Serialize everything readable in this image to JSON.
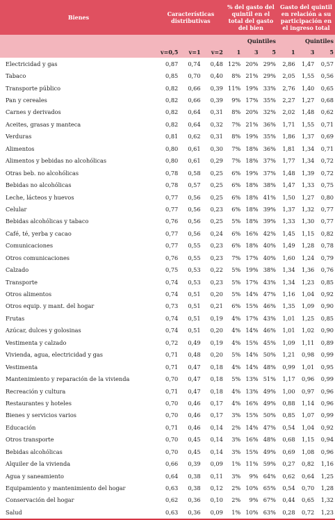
{
  "header": {
    "col_bienes": "Bienes",
    "col_caracteristicas": "Características distributivas",
    "col_gasto_pct": "% del gasto del quintil en el total del gasto del bien",
    "col_gasto_rel": "Gasto del quintil en relación a su participación en el ingreso total",
    "quintiles_label": "Quintiles",
    "v_labels": [
      "v=0,5",
      "v=1",
      "v=2"
    ],
    "q_labels": [
      "1",
      "3",
      "5"
    ]
  },
  "rows": [
    {
      "name": "Electricidad y gas",
      "v": [
        "0,87",
        "0,74",
        "0,48"
      ],
      "p": [
        "12%",
        "20%",
        "29%"
      ],
      "e": [
        "2,86",
        "1,47",
        "0,57"
      ]
    },
    {
      "name": "Tabaco",
      "v": [
        "0,85",
        "0,70",
        "0,40"
      ],
      "p": [
        "8%",
        "21%",
        "29%"
      ],
      "e": [
        "2,05",
        "1,55",
        "0,56"
      ]
    },
    {
      "name": "Transporte público",
      "v": [
        "0,82",
        "0,66",
        "0,39"
      ],
      "p": [
        "11%",
        "19%",
        "33%"
      ],
      "e": [
        "2,76",
        "1,40",
        "0,65"
      ]
    },
    {
      "name": "Pan y cereales",
      "v": [
        "0,82",
        "0,66",
        "0,39"
      ],
      "p": [
        "9%",
        "17%",
        "35%"
      ],
      "e": [
        "2,27",
        "1,27",
        "0,68"
      ]
    },
    {
      "name": "Carnes y derivados",
      "v": [
        "0,82",
        "0,64",
        "0,31"
      ],
      "p": [
        "8%",
        "20%",
        "32%"
      ],
      "e": [
        "2,02",
        "1,48",
        "0,62"
      ]
    },
    {
      "name": "Aceites, grasas y manteca",
      "v": [
        "0,82",
        "0,64",
        "0,32"
      ],
      "p": [
        "7%",
        "21%",
        "36%"
      ],
      "e": [
        "1,71",
        "1,55",
        "0,71"
      ]
    },
    {
      "name": "Verduras",
      "v": [
        "0,81",
        "0,62",
        "0,31"
      ],
      "p": [
        "8%",
        "19%",
        "35%"
      ],
      "e": [
        "1,86",
        "1,37",
        "0,69"
      ]
    },
    {
      "name": "Alimentos",
      "v": [
        "0,80",
        "0,61",
        "0,30"
      ],
      "p": [
        "7%",
        "18%",
        "36%"
      ],
      "e": [
        "1,81",
        "1,34",
        "0,71"
      ]
    },
    {
      "name": "Alimentos y bebidas no alcohólicas",
      "v": [
        "0,80",
        "0,61",
        "0,29"
      ],
      "p": [
        "7%",
        "18%",
        "37%"
      ],
      "e": [
        "1,77",
        "1,34",
        "0,72"
      ]
    },
    {
      "name": "Otras beb. no alcohólicas",
      "v": [
        "0,78",
        "0,58",
        "0,25"
      ],
      "p": [
        "6%",
        "19%",
        "37%"
      ],
      "e": [
        "1,48",
        "1,39",
        "0,72"
      ]
    },
    {
      "name": "Bebidas no alcohólicas",
      "v": [
        "0,78",
        "0,57",
        "0,25"
      ],
      "p": [
        "6%",
        "18%",
        "38%"
      ],
      "e": [
        "1,47",
        "1,33",
        "0,75"
      ]
    },
    {
      "name": "Leche, lácteos y huevos",
      "v": [
        "0,77",
        "0,56",
        "0,25"
      ],
      "p": [
        "6%",
        "18%",
        "41%"
      ],
      "e": [
        "1,50",
        "1,27",
        "0,80"
      ]
    },
    {
      "name": "Celular",
      "v": [
        "0,77",
        "0,56",
        "0,23"
      ],
      "p": [
        "6%",
        "18%",
        "39%"
      ],
      "e": [
        "1,37",
        "1,32",
        "0,77"
      ]
    },
    {
      "name": "Bebidas alcohólicas y tabaco",
      "v": [
        "0,76",
        "0,56",
        "0,25"
      ],
      "p": [
        "5%",
        "18%",
        "39%"
      ],
      "e": [
        "1,33",
        "1,30",
        "0,77"
      ]
    },
    {
      "name": "Café, té, yerba y cacao",
      "v": [
        "0,77",
        "0,56",
        "0,24"
      ],
      "p": [
        "6%",
        "16%",
        "42%"
      ],
      "e": [
        "1,45",
        "1,15",
        "0,82"
      ]
    },
    {
      "name": "Comunicaciones",
      "v": [
        "0,77",
        "0,55",
        "0,23"
      ],
      "p": [
        "6%",
        "18%",
        "40%"
      ],
      "e": [
        "1,49",
        "1,28",
        "0,78"
      ]
    },
    {
      "name": "Otros comunicaciones",
      "v": [
        "0,76",
        "0,55",
        "0,23"
      ],
      "p": [
        "7%",
        "17%",
        "40%"
      ],
      "e": [
        "1,60",
        "1,24",
        "0,79"
      ]
    },
    {
      "name": "Calzado",
      "v": [
        "0,75",
        "0,53",
        "0,22"
      ],
      "p": [
        "5%",
        "19%",
        "38%"
      ],
      "e": [
        "1,34",
        "1,36",
        "0,76"
      ]
    },
    {
      "name": "Transporte",
      "v": [
        "0,74",
        "0,53",
        "0,23"
      ],
      "p": [
        "5%",
        "17%",
        "43%"
      ],
      "e": [
        "1,34",
        "1,23",
        "0,85"
      ]
    },
    {
      "name": "Otros alimentos",
      "v": [
        "0,74",
        "0,51",
        "0,20"
      ],
      "p": [
        "5%",
        "14%",
        "47%"
      ],
      "e": [
        "1,16",
        "1,04",
        "0,92"
      ]
    },
    {
      "name": "Otros equip. y mant. del hogar",
      "v": [
        "0,73",
        "0,51",
        "0,21"
      ],
      "p": [
        "6%",
        "15%",
        "46%"
      ],
      "e": [
        "1,35",
        "1,09",
        "0,90"
      ]
    },
    {
      "name": "Frutas",
      "v": [
        "0,74",
        "0,51",
        "0,19"
      ],
      "p": [
        "4%",
        "17%",
        "43%"
      ],
      "e": [
        "1,01",
        "1,25",
        "0,85"
      ]
    },
    {
      "name": "Azúcar, dulces y golosinas",
      "v": [
        "0,74",
        "0,51",
        "0,20"
      ],
      "p": [
        "4%",
        "14%",
        "46%"
      ],
      "e": [
        "1,01",
        "1,02",
        "0,90"
      ]
    },
    {
      "name": "Vestimenta y calzado",
      "v": [
        "0,72",
        "0,49",
        "0,19"
      ],
      "p": [
        "4%",
        "15%",
        "45%"
      ],
      "e": [
        "1,09",
        "1,11",
        "0,89"
      ]
    },
    {
      "name": "Vivienda, agua, electricidad y gas",
      "v": [
        "0,71",
        "0,48",
        "0,20"
      ],
      "p": [
        "5%",
        "14%",
        "50%"
      ],
      "e": [
        "1,21",
        "0,98",
        "0,99"
      ]
    },
    {
      "name": "Vestimenta",
      "v": [
        "0,71",
        "0,47",
        "0,18"
      ],
      "p": [
        "4%",
        "14%",
        "48%"
      ],
      "e": [
        "0,99",
        "1,01",
        "0,95"
      ]
    },
    {
      "name": "Mantenimiento y reparación de la vivienda",
      "v": [
        "0,70",
        "0,47",
        "0,18"
      ],
      "p": [
        "5%",
        "13%",
        "51%"
      ],
      "e": [
        "1,17",
        "0,96",
        "0,99"
      ]
    },
    {
      "name": "Recreación y cultura",
      "v": [
        "0,71",
        "0,47",
        "0,18"
      ],
      "p": [
        "4%",
        "13%",
        "49%"
      ],
      "e": [
        "1,00",
        "0,97",
        "0,96"
      ]
    },
    {
      "name": "Restaurantes y hoteles",
      "v": [
        "0,70",
        "0,46",
        "0,17"
      ],
      "p": [
        "4%",
        "16%",
        "49%"
      ],
      "e": [
        "0,88",
        "1,14",
        "0,96"
      ]
    },
    {
      "name": "Bienes y servicios varios",
      "v": [
        "0,70",
        "0,46",
        "0,17"
      ],
      "p": [
        "3%",
        "15%",
        "50%"
      ],
      "e": [
        "0,85",
        "1,07",
        "0,99"
      ]
    },
    {
      "name": "Educación",
      "v": [
        "0,71",
        "0,46",
        "0,14"
      ],
      "p": [
        "2%",
        "14%",
        "47%"
      ],
      "e": [
        "0,54",
        "1,04",
        "0,92"
      ]
    },
    {
      "name": "Otros transporte",
      "v": [
        "0,70",
        "0,45",
        "0,14"
      ],
      "p": [
        "3%",
        "16%",
        "48%"
      ],
      "e": [
        "0,68",
        "1,15",
        "0,94"
      ]
    },
    {
      "name": "Bebidas alcohólicas",
      "v": [
        "0,70",
        "0,45",
        "0,14"
      ],
      "p": [
        "3%",
        "15%",
        "49%"
      ],
      "e": [
        "0,69",
        "1,08",
        "0,96"
      ]
    },
    {
      "name": "Alquiler de la vivienda",
      "v": [
        "0,66",
        "0,39",
        "0,09"
      ],
      "p": [
        "1%",
        "11%",
        "59%"
      ],
      "e": [
        "0,27",
        "0,82",
        "1,16"
      ]
    },
    {
      "name": "Agua y saneamiento",
      "v": [
        "0,64",
        "0,38",
        "0,11"
      ],
      "p": [
        "3%",
        "9%",
        "64%"
      ],
      "e": [
        "0,62",
        "0,64",
        "1,25"
      ]
    },
    {
      "name": "Equipamiento y mantenimiento del hogar",
      "v": [
        "0,63",
        "0,38",
        "0,12"
      ],
      "p": [
        "2%",
        "10%",
        "65%"
      ],
      "e": [
        "0,54",
        "0,70",
        "1,28"
      ]
    },
    {
      "name": "Conservación del hogar",
      "v": [
        "0,62",
        "0,36",
        "0,10"
      ],
      "p": [
        "2%",
        "9%",
        "67%"
      ],
      "e": [
        "0,44",
        "0,65",
        "1,32"
      ]
    },
    {
      "name": "Salud",
      "v": [
        "0,63",
        "0,36",
        "0,09"
      ],
      "p": [
        "1%",
        "10%",
        "63%"
      ],
      "e": [
        "0,28",
        "0,72",
        "1,23"
      ]
    }
  ]
}
